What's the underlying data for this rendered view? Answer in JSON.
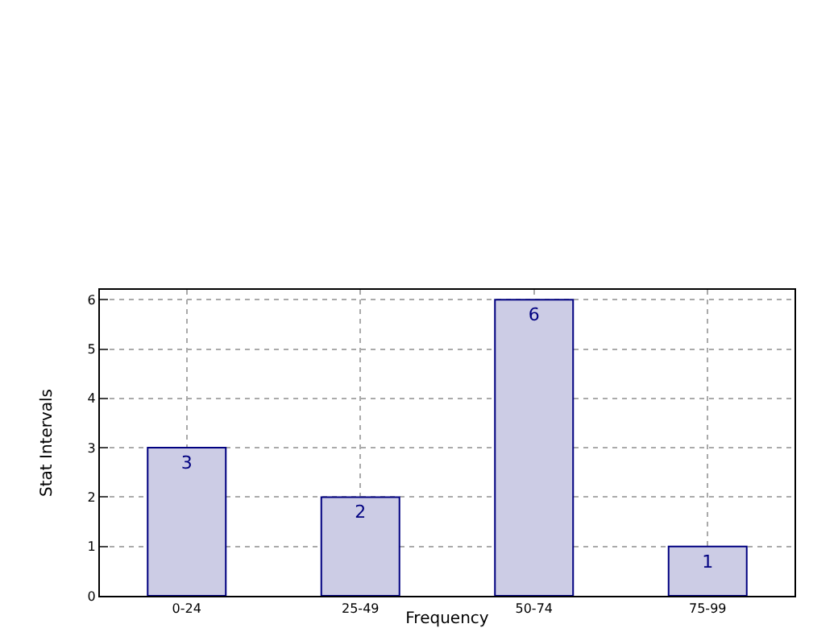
{
  "chart_data": {
    "type": "bar",
    "xlabel": "Frequency",
    "ylabel": "Stat Intervals",
    "categories": [
      "0-24",
      "25-49",
      "50-74",
      "75-99"
    ],
    "values": [
      3,
      2,
      6,
      1
    ],
    "color": "#ccccE5",
    "ylim": [
      0,
      6.2
    ],
    "yticks": [
      0,
      1,
      2,
      3,
      4,
      5,
      6
    ],
    "grid": true,
    "data_labels": true
  }
}
